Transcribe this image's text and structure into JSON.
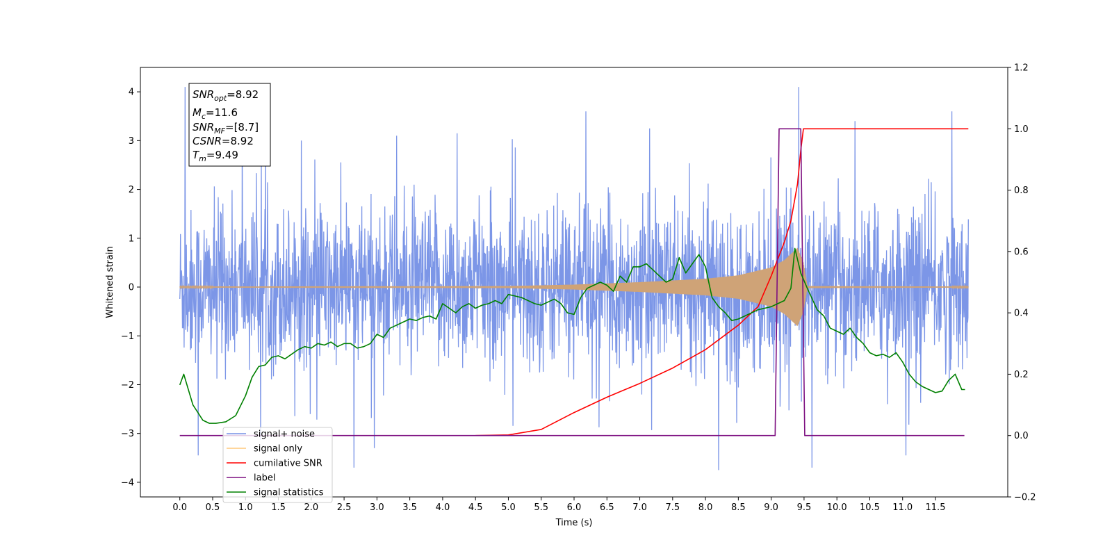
{
  "chart_data": {
    "type": "line",
    "xlabel": "Time (s)",
    "ylabel": "Whitened strain",
    "xlim": [
      -0.6,
      12.6
    ],
    "ylim": [
      -4.3,
      4.5
    ],
    "y2lim": [
      -0.2,
      1.2
    ],
    "x_ticks": [
      "0.0",
      "0.5",
      "1.0",
      "1.5",
      "2.0",
      "2.5",
      "3.0",
      "3.5",
      "4.0",
      "4.5",
      "5.0",
      "5.5",
      "6.0",
      "6.5",
      "7.0",
      "7.5",
      "8.0",
      "8.5",
      "9.0",
      "9.5",
      "10.0",
      "10.5",
      "11.0",
      "11.5"
    ],
    "y_ticks": [
      "4",
      "3",
      "2",
      "1",
      "0",
      "−1",
      "−2",
      "−3",
      "−4"
    ],
    "y2_ticks": [
      "1.2",
      "1.0",
      "0.8",
      "0.6",
      "0.4",
      "0.2",
      "0.0",
      "−0.2"
    ],
    "info_box": {
      "snr_opt": {
        "main": "SNR",
        "sub": "opt",
        "value": "=8.92"
      },
      "mc": {
        "main": "M",
        "sub": "c",
        "value": "=11.6"
      },
      "snr_mf": {
        "main": "SNR",
        "sub": "MF",
        "value": "=[8.7]"
      },
      "csnr": {
        "main": "CSNR",
        "value": "=8.92"
      },
      "tm": {
        "main": "T",
        "sub": "m",
        "value": "=9.49"
      }
    },
    "legend": {
      "location": "lower left",
      "entries": [
        {
          "label": "signal+ noise",
          "color": "#7590e6"
        },
        {
          "label": "signal only",
          "color": "#ffc87a"
        },
        {
          "label": "cumilative SNR",
          "color": "#ff0000"
        },
        {
          "label": "label",
          "color": "#7d0f80"
        },
        {
          "label": "signal statistics",
          "color": "#008000"
        }
      ]
    },
    "series": [
      {
        "name": "signal+ noise",
        "axis": "left",
        "color": "#7590e6",
        "description_points": "band",
        "x_range": [
          0.0,
          12.0
        ],
        "envelope_lower": -1.8,
        "envelope_upper": 1.8,
        "spikes": [
          {
            "x": 0.08,
            "y": 4.1
          },
          {
            "x": 0.28,
            "y": -3.45
          },
          {
            "x": 0.95,
            "y": 3.25
          },
          {
            "x": 1.85,
            "y": 3.0
          },
          {
            "x": 2.65,
            "y": -3.7
          },
          {
            "x": 3.3,
            "y": 3.1
          },
          {
            "x": 4.22,
            "y": 3.15
          },
          {
            "x": 6.18,
            "y": 3.6
          },
          {
            "x": 7.15,
            "y": 3.25
          },
          {
            "x": 8.2,
            "y": -3.75
          },
          {
            "x": 9.42,
            "y": 4.1
          },
          {
            "x": 9.62,
            "y": -3.7
          },
          {
            "x": 11.05,
            "y": -3.45
          },
          {
            "x": 11.75,
            "y": 3.6
          }
        ]
      },
      {
        "name": "signal only",
        "axis": "left",
        "color": "#ffc87a",
        "x": [
          0.0,
          5.0,
          6.0,
          7.0,
          8.0,
          8.5,
          9.0,
          9.2,
          9.4,
          9.49,
          9.55,
          12.0
        ],
        "amplitude": [
          0.01,
          0.02,
          0.05,
          0.1,
          0.17,
          0.24,
          0.4,
          0.55,
          0.8,
          0.5,
          0.02,
          0.01
        ]
      },
      {
        "name": "cumilative SNR",
        "axis": "right",
        "color": "#ff0000",
        "x": [
          4.5,
          5.0,
          5.5,
          6.0,
          6.5,
          7.0,
          7.5,
          8.0,
          8.5,
          8.8,
          9.0,
          9.2,
          9.3,
          9.4,
          9.45,
          9.49,
          9.5,
          12.0
        ],
        "values": [
          0.0,
          0.002,
          0.02,
          0.075,
          0.125,
          0.17,
          0.22,
          0.28,
          0.36,
          0.42,
          0.52,
          0.63,
          0.7,
          0.82,
          0.93,
          1.0,
          1.0,
          1.0
        ]
      },
      {
        "name": "label",
        "axis": "right",
        "color": "#7d0f80",
        "x": [
          0.0,
          9.06,
          9.12,
          9.45,
          9.51,
          11.94
        ],
        "values": [
          0.0,
          0.0,
          1.0,
          1.0,
          0.0,
          0.0
        ]
      },
      {
        "name": "signal statistics",
        "axis": "right",
        "color": "#008000",
        "x": [
          0.0,
          0.06,
          0.2,
          0.35,
          0.45,
          0.55,
          0.7,
          0.85,
          1.0,
          1.1,
          1.2,
          1.3,
          1.4,
          1.5,
          1.6,
          1.7,
          1.8,
          1.9,
          2.0,
          2.1,
          2.2,
          2.3,
          2.4,
          2.5,
          2.6,
          2.7,
          2.8,
          2.9,
          3.0,
          3.1,
          3.2,
          3.3,
          3.4,
          3.5,
          3.6,
          3.7,
          3.8,
          3.9,
          4.0,
          4.1,
          4.2,
          4.3,
          4.4,
          4.5,
          4.6,
          4.7,
          4.8,
          4.9,
          5.0,
          5.1,
          5.2,
          5.3,
          5.4,
          5.5,
          5.6,
          5.7,
          5.8,
          5.9,
          6.0,
          6.1,
          6.2,
          6.3,
          6.4,
          6.5,
          6.6,
          6.7,
          6.8,
          6.9,
          7.0,
          7.1,
          7.2,
          7.3,
          7.4,
          7.5,
          7.6,
          7.7,
          7.8,
          7.9,
          8.0,
          8.1,
          8.2,
          8.3,
          8.4,
          8.5,
          8.6,
          8.7,
          8.8,
          8.9,
          9.0,
          9.1,
          9.2,
          9.3,
          9.36,
          9.45,
          9.55,
          9.7,
          9.8,
          9.9,
          10.0,
          10.1,
          10.2,
          10.3,
          10.4,
          10.5,
          10.6,
          10.7,
          10.8,
          10.9,
          11.0,
          11.1,
          11.2,
          11.3,
          11.4,
          11.5,
          11.6,
          11.7,
          11.8,
          11.9,
          11.95
        ],
        "values": [
          0.165,
          0.2,
          0.1,
          0.05,
          0.04,
          0.04,
          0.045,
          0.065,
          0.13,
          0.19,
          0.225,
          0.23,
          0.255,
          0.26,
          0.25,
          0.265,
          0.28,
          0.29,
          0.285,
          0.3,
          0.295,
          0.305,
          0.29,
          0.3,
          0.3,
          0.285,
          0.29,
          0.3,
          0.33,
          0.32,
          0.35,
          0.36,
          0.37,
          0.38,
          0.375,
          0.385,
          0.39,
          0.38,
          0.43,
          0.415,
          0.4,
          0.42,
          0.43,
          0.415,
          0.425,
          0.43,
          0.44,
          0.43,
          0.46,
          0.455,
          0.45,
          0.44,
          0.43,
          0.425,
          0.435,
          0.445,
          0.43,
          0.4,
          0.395,
          0.45,
          0.48,
          0.49,
          0.5,
          0.49,
          0.47,
          0.52,
          0.5,
          0.55,
          0.55,
          0.56,
          0.54,
          0.52,
          0.5,
          0.51,
          0.58,
          0.53,
          0.56,
          0.59,
          0.55,
          0.45,
          0.42,
          0.4,
          0.375,
          0.38,
          0.39,
          0.4,
          0.41,
          0.415,
          0.42,
          0.43,
          0.44,
          0.48,
          0.61,
          0.53,
          0.48,
          0.41,
          0.39,
          0.35,
          0.34,
          0.33,
          0.35,
          0.32,
          0.3,
          0.27,
          0.26,
          0.265,
          0.255,
          0.27,
          0.24,
          0.2,
          0.175,
          0.16,
          0.15,
          0.14,
          0.145,
          0.18,
          0.2,
          0.15,
          0.15
        ]
      }
    ]
  }
}
